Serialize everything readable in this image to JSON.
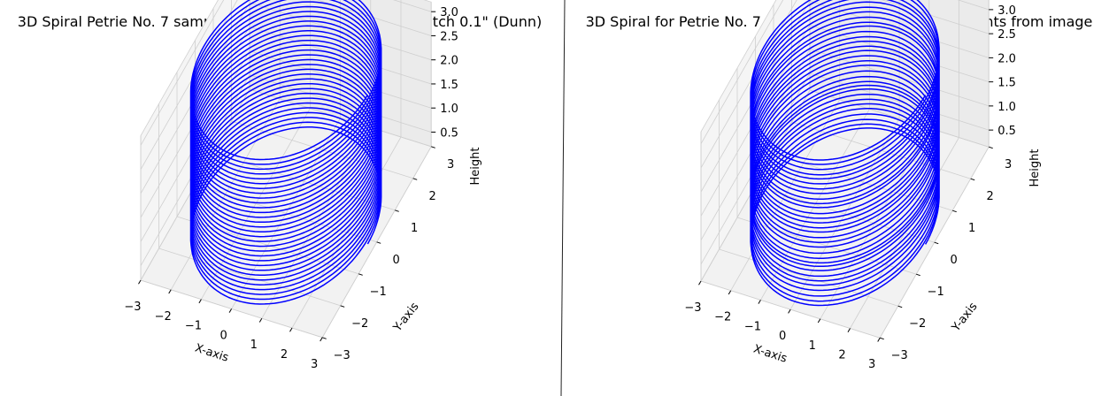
{
  "chart_data": [
    {
      "type": "line",
      "projection": "3d",
      "title": "3D Spiral Petrie No. 7 sample with 31 Turns and Uniform Pitch 0.1\" (Dunn)",
      "xlabel": "X-axis",
      "ylabel": "Y-axis",
      "zlabel": "Height",
      "xlim": [
        -3,
        3
      ],
      "ylim": [
        -3,
        3
      ],
      "zlim": [
        0.2,
        3.2
      ],
      "x_ticks": [
        "−3",
        "−2",
        "−1",
        "0",
        "1",
        "2",
        "3"
      ],
      "y_ticks": [
        "−3",
        "−2",
        "−1",
        "0",
        "1",
        "2",
        "3"
      ],
      "z_ticks": [
        "0.5",
        "1.0",
        "1.5",
        "2.0",
        "2.5",
        "3.0"
      ],
      "grid": true,
      "color": "#0000ff",
      "series": [
        {
          "radius": 2.7,
          "turns": 31,
          "z_start": 0.1,
          "pitches": [
            0.1,
            0.1,
            0.1,
            0.1,
            0.1,
            0.1,
            0.1,
            0.1,
            0.1,
            0.1,
            0.1,
            0.1,
            0.1,
            0.1,
            0.1,
            0.1,
            0.1,
            0.1,
            0.1,
            0.1,
            0.1,
            0.1,
            0.1,
            0.1,
            0.1,
            0.1,
            0.1,
            0.1,
            0.1,
            0.1,
            0.1
          ]
        }
      ]
    },
    {
      "type": "line",
      "projection": "3d",
      "title": "3D Spiral for Petrie No. 7 sample using 31 pitch data points from image",
      "xlabel": "X-axis",
      "ylabel": "Y-axis",
      "zlabel": "Height",
      "xlim": [
        -3,
        3
      ],
      "ylim": [
        -3,
        3
      ],
      "zlim": [
        0.15,
        3.25
      ],
      "x_ticks": [
        "−3",
        "−2",
        "−1",
        "0",
        "1",
        "2",
        "3"
      ],
      "y_ticks": [
        "−3",
        "−2",
        "−1",
        "0",
        "1",
        "2",
        "3"
      ],
      "z_ticks": [
        "0.5",
        "1.0",
        "1.5",
        "2.0",
        "2.5",
        "3.0"
      ],
      "grid": true,
      "color": "#0000ff",
      "series": [
        {
          "radius": 2.7,
          "turns": 31,
          "z_start": 0.05,
          "pitches": [
            0.08,
            0.09,
            0.11,
            0.12,
            0.1,
            0.09,
            0.1,
            0.12,
            0.08,
            0.07,
            0.1,
            0.11,
            0.13,
            0.09,
            0.1,
            0.12,
            0.08,
            0.11,
            0.09,
            0.1,
            0.13,
            0.07,
            0.1,
            0.12,
            0.09,
            0.11,
            0.1,
            0.08,
            0.12,
            0.1,
            0.09
          ]
        }
      ]
    }
  ]
}
